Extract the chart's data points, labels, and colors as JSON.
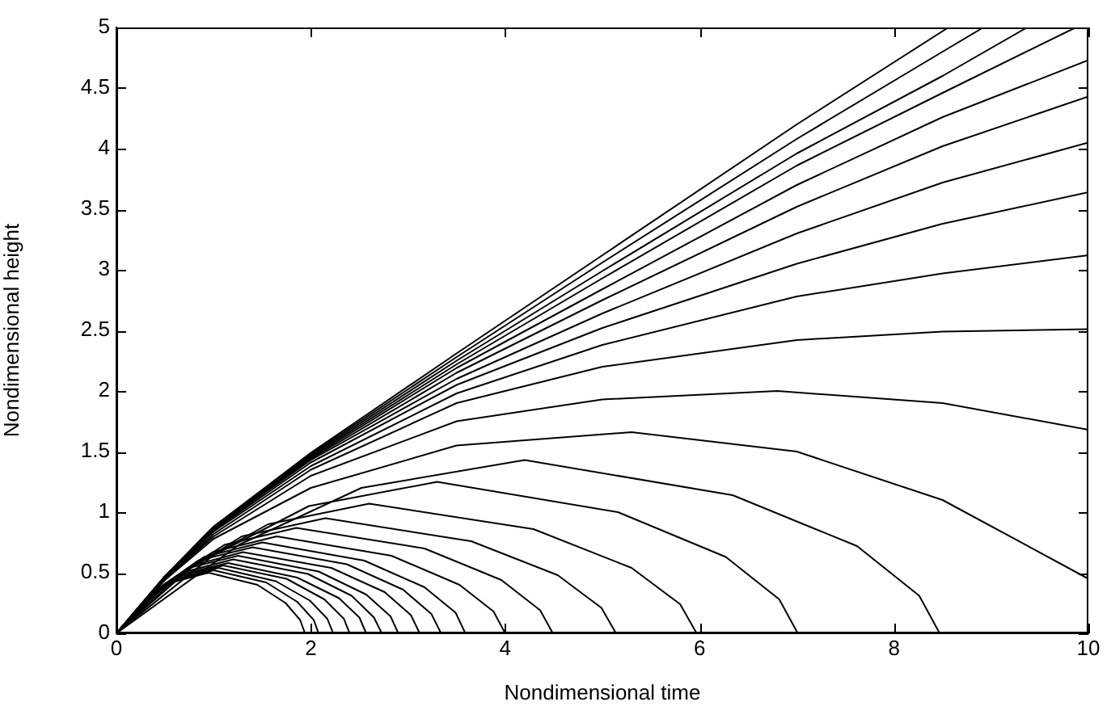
{
  "chart_data": {
    "type": "line",
    "xlabel": "Nondimensional time",
    "ylabel": "Nondimensional height",
    "xlim": [
      0,
      10
    ],
    "ylim": [
      0,
      5
    ],
    "xticks": [
      0,
      2,
      4,
      6,
      8,
      10
    ],
    "yticks": [
      0,
      0.5,
      1,
      1.5,
      2,
      2.5,
      3,
      3.5,
      4,
      4.5,
      5
    ],
    "grid": false,
    "legend": false,
    "marker": "none",
    "line_style": "solid",
    "series": [
      {
        "color": "#000000",
        "x": [
          0,
          0.29,
          0.57,
          0.95,
          1.45,
          1.74,
          1.89,
          1.94
        ],
        "values": [
          0,
          0.26,
          0.42,
          0.5,
          0.4,
          0.25,
          0.11,
          0
        ]
      },
      {
        "color": "#000000",
        "x": [
          0,
          0.3,
          0.6,
          1.0,
          1.54,
          1.86,
          2.03,
          2.08
        ],
        "values": [
          0,
          0.27,
          0.44,
          0.52,
          0.42,
          0.26,
          0.11,
          0
        ]
      },
      {
        "color": "#000000",
        "x": [
          0,
          0.32,
          0.63,
          1.05,
          1.64,
          1.99,
          2.17,
          2.23
        ],
        "values": [
          0,
          0.28,
          0.45,
          0.54,
          0.43,
          0.27,
          0.12,
          0
        ]
      },
      {
        "color": "#000000",
        "x": [
          0,
          0.33,
          0.66,
          1.1,
          1.75,
          2.14,
          2.34,
          2.4
        ],
        "values": [
          0,
          0.29,
          0.47,
          0.56,
          0.45,
          0.28,
          0.12,
          0
        ]
      },
      {
        "color": "#000000",
        "x": [
          0,
          0.35,
          0.69,
          1.15,
          1.86,
          2.29,
          2.5,
          2.57
        ],
        "values": [
          0,
          0.3,
          0.49,
          0.58,
          0.46,
          0.29,
          0.13,
          0
        ]
      },
      {
        "color": "#000000",
        "x": [
          0,
          0.36,
          0.72,
          1.2,
          1.97,
          2.42,
          2.65,
          2.73
        ],
        "values": [
          0,
          0.31,
          0.51,
          0.61,
          0.49,
          0.31,
          0.13,
          0
        ]
      },
      {
        "color": "#000000",
        "x": [
          0,
          0.38,
          0.75,
          1.25,
          2.08,
          2.57,
          2.82,
          2.9
        ],
        "values": [
          0,
          0.33,
          0.54,
          0.64,
          0.51,
          0.32,
          0.14,
          0
        ]
      },
      {
        "color": "#000000",
        "x": [
          0,
          0.39,
          0.78,
          1.3,
          2.21,
          2.76,
          3.03,
          3.12
        ],
        "values": [
          0,
          0.34,
          0.56,
          0.67,
          0.54,
          0.34,
          0.15,
          0
        ]
      },
      {
        "color": "#000000",
        "x": [
          0,
          0.42,
          0.84,
          1.4,
          2.37,
          2.95,
          3.24,
          3.34
        ],
        "values": [
          0,
          0.36,
          0.6,
          0.71,
          0.57,
          0.36,
          0.16,
          0
        ]
      },
      {
        "color": "#000000",
        "x": [
          0,
          0.45,
          0.9,
          1.5,
          2.55,
          3.17,
          3.49,
          3.59
        ],
        "values": [
          0,
          0.38,
          0.63,
          0.75,
          0.6,
          0.38,
          0.17,
          0
        ]
      },
      {
        "color": "#000000",
        "x": [
          0,
          0.5,
          0.99,
          1.65,
          2.83,
          3.53,
          3.88,
          4.0
        ],
        "values": [
          0,
          0.41,
          0.67,
          0.8,
          0.64,
          0.4,
          0.18,
          0
        ]
      },
      {
        "color": "#000000",
        "x": [
          0,
          0.56,
          1.11,
          1.85,
          3.17,
          3.96,
          4.36,
          4.49
        ],
        "values": [
          0,
          0.44,
          0.73,
          0.87,
          0.7,
          0.44,
          0.19,
          0
        ]
      },
      {
        "color": "#000000",
        "x": [
          0,
          0.65,
          1.29,
          2.15,
          3.65,
          4.54,
          4.99,
          5.14
        ],
        "values": [
          0,
          0.48,
          0.8,
          0.95,
          0.76,
          0.48,
          0.21,
          0
        ]
      },
      {
        "color": "#000000",
        "x": [
          0,
          0.78,
          1.56,
          2.6,
          4.29,
          5.3,
          5.8,
          5.97
        ],
        "values": [
          0,
          0.55,
          0.9,
          1.07,
          0.86,
          0.54,
          0.24,
          0
        ]
      },
      {
        "color": "#000000",
        "x": [
          0,
          0.99,
          1.98,
          3.3,
          5.16,
          6.27,
          6.82,
          7.01
        ],
        "values": [
          0,
          0.64,
          1.05,
          1.25,
          1.0,
          0.63,
          0.28,
          0
        ]
      },
      {
        "color": "#000000",
        "x": [
          0,
          1.26,
          2.52,
          4.2,
          6.34,
          7.62,
          8.26,
          8.47
        ],
        "values": [
          0,
          0.73,
          1.2,
          1.43,
          1.14,
          0.72,
          0.31,
          0
        ]
      },
      {
        "color": "#000000",
        "x": [
          0,
          0.5,
          1,
          2,
          3.5,
          5.3,
          7,
          8.5,
          10
        ],
        "values": [
          0,
          0.44,
          0.78,
          1.2,
          1.55,
          1.66,
          1.5,
          1.1,
          0.45
        ]
      },
      {
        "color": "#000000",
        "x": [
          0,
          0.5,
          1,
          2,
          3.5,
          5,
          6.8,
          8.5,
          10
        ],
        "values": [
          0,
          0.45,
          0.8,
          1.3,
          1.75,
          1.93,
          2.0,
          1.9,
          1.68
        ]
      },
      {
        "color": "#000000",
        "x": [
          0,
          0.5,
          1,
          2,
          3.5,
          5,
          7,
          8.5,
          10
        ],
        "values": [
          0,
          0.45,
          0.82,
          1.35,
          1.9,
          2.2,
          2.42,
          2.49,
          2.51
        ]
      },
      {
        "color": "#000000",
        "x": [
          0,
          0.5,
          1,
          2,
          3.5,
          5,
          7,
          8.5,
          10
        ],
        "values": [
          0,
          0.46,
          0.84,
          1.38,
          1.98,
          2.38,
          2.78,
          2.97,
          3.12
        ]
      },
      {
        "color": "#000000",
        "x": [
          0,
          0.5,
          1,
          2,
          3.5,
          5,
          7,
          8.5,
          10
        ],
        "values": [
          0,
          0.46,
          0.85,
          1.41,
          2.05,
          2.52,
          3.05,
          3.38,
          3.64
        ]
      },
      {
        "color": "#000000",
        "x": [
          0,
          0.5,
          1,
          2,
          3.5,
          5,
          7,
          8.5,
          10
        ],
        "values": [
          0,
          0.47,
          0.86,
          1.43,
          2.1,
          2.64,
          3.3,
          3.72,
          4.05
        ]
      },
      {
        "color": "#000000",
        "x": [
          0,
          0.5,
          1,
          2,
          3.5,
          5,
          7,
          8.5,
          10
        ],
        "values": [
          0,
          0.47,
          0.87,
          1.44,
          2.15,
          2.75,
          3.52,
          4.02,
          4.43
        ]
      },
      {
        "color": "#000000",
        "x": [
          0,
          0.5,
          1,
          2,
          3.5,
          5,
          7,
          8.5,
          10
        ],
        "values": [
          0,
          0.47,
          0.87,
          1.45,
          2.19,
          2.84,
          3.7,
          4.26,
          4.73
        ]
      },
      {
        "color": "#000000",
        "x": [
          0,
          0.5,
          1,
          2,
          3.5,
          5,
          7,
          8.5,
          9.87
        ],
        "values": [
          0,
          0.47,
          0.88,
          1.46,
          2.22,
          2.93,
          3.86,
          4.46,
          5
        ]
      },
      {
        "color": "#000000",
        "x": [
          0,
          0.5,
          1,
          2,
          3.5,
          5,
          7,
          8.5,
          9.37
        ],
        "values": [
          0,
          0.47,
          0.88,
          1.47,
          2.25,
          2.99,
          3.96,
          4.6,
          5
        ]
      },
      {
        "color": "#000000",
        "x": [
          0,
          0.5,
          1,
          2,
          3.5,
          5,
          7,
          8.5,
          8.92
        ],
        "values": [
          0,
          0.47,
          0.88,
          1.48,
          2.28,
          3.06,
          4.08,
          4.8,
          5
        ]
      },
      {
        "color": "#000000",
        "x": [
          0,
          0.5,
          1,
          2,
          3.5,
          5,
          7,
          8.56
        ],
        "values": [
          0,
          0.47,
          0.88,
          1.49,
          2.31,
          3.12,
          4.2,
          5
        ]
      }
    ]
  }
}
